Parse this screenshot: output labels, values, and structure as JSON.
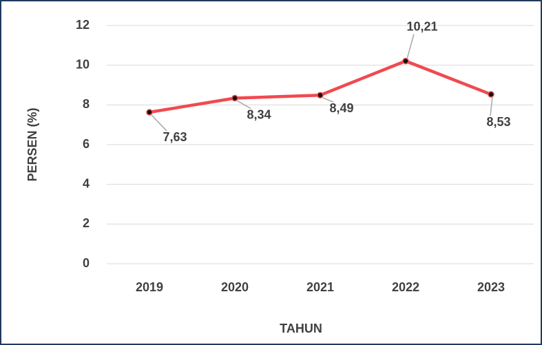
{
  "chart_data": {
    "type": "line",
    "categories": [
      "2019",
      "2020",
      "2021",
      "2022",
      "2023"
    ],
    "series": [
      {
        "color": "#f04a4f",
        "values": [
          7.63,
          8.34,
          8.49,
          10.21,
          8.53
        ],
        "value_labels": [
          "7,63",
          "8,34",
          "8,49",
          "10,21",
          "8,53"
        ]
      }
    ],
    "ylim": [
      0,
      12
    ],
    "yticks": [
      0,
      2,
      4,
      6,
      8,
      10,
      12
    ],
    "grid": true,
    "x_label": "TAHUN",
    "y_label": "PERSEN (%)"
  }
}
